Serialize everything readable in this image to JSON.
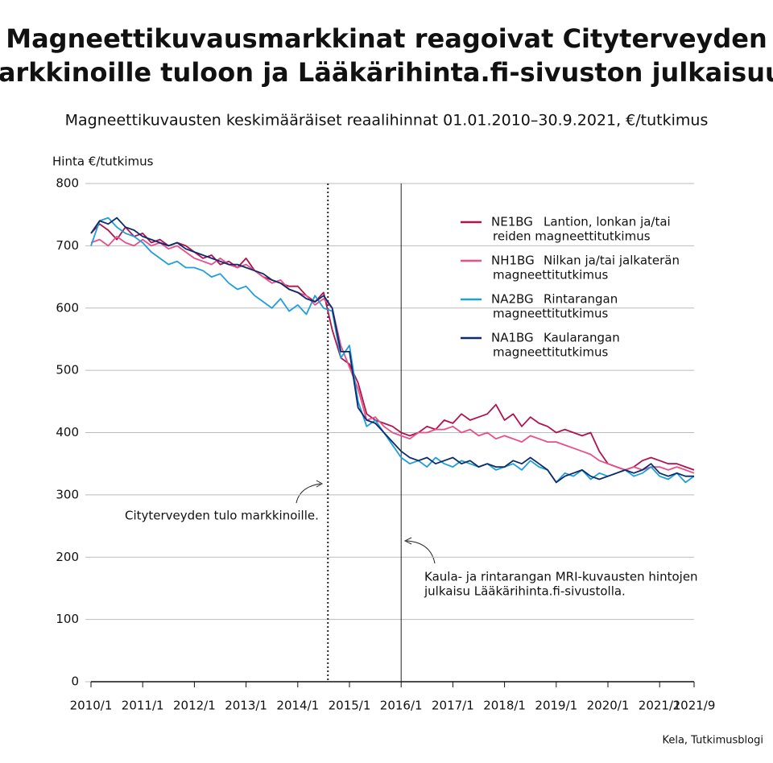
{
  "chart_data": {
    "type": "line",
    "title": [
      "Magneettikuvausmarkkinat reagoivat Cityterveyden",
      "markkinoille tuloon ja Lääkärihinta.fi-sivuston julkaisuun"
    ],
    "subtitle": "Magneettikuvausten keskimääräiset reaalihinnat 01.01.2010–30.9.2021, €/tutkimus",
    "y_label": "Hinta €/tutkimus",
    "source": "Kela, Tutkimusblogi",
    "ylim": [
      0,
      800
    ],
    "yticks": [
      0,
      100,
      200,
      300,
      400,
      500,
      600,
      700,
      800
    ],
    "grid": true,
    "xlim": [
      "2010/1",
      "2021/9"
    ],
    "xticks": [
      "2010/1",
      "2011/1",
      "2012/1",
      "2013/1",
      "2014/1",
      "2015/1",
      "2016/1",
      "2017/1",
      "2018/1",
      "2019/1",
      "2020/1",
      "2021/1",
      "2021/9"
    ],
    "x": [
      "2010/1",
      "2010/3",
      "2010/5",
      "2010/7",
      "2010/9",
      "2010/11",
      "2011/1",
      "2011/3",
      "2011/5",
      "2011/7",
      "2011/9",
      "2011/11",
      "2012/1",
      "2012/3",
      "2012/5",
      "2012/7",
      "2012/9",
      "2012/11",
      "2013/1",
      "2013/3",
      "2013/5",
      "2013/7",
      "2013/9",
      "2013/11",
      "2014/1",
      "2014/3",
      "2014/5",
      "2014/7",
      "2014/9",
      "2014/11",
      "2015/1",
      "2015/3",
      "2015/5",
      "2015/7",
      "2015/9",
      "2015/11",
      "2016/1",
      "2016/3",
      "2016/5",
      "2016/7",
      "2016/9",
      "2016/11",
      "2017/1",
      "2017/3",
      "2017/5",
      "2017/7",
      "2017/9",
      "2017/11",
      "2018/1",
      "2018/3",
      "2018/5",
      "2018/7",
      "2018/9",
      "2018/11",
      "2019/1",
      "2019/3",
      "2019/5",
      "2019/7",
      "2019/9",
      "2019/11",
      "2020/1",
      "2020/3",
      "2020/5",
      "2020/7",
      "2020/9",
      "2020/11",
      "2021/1",
      "2021/3",
      "2021/5",
      "2021/7",
      "2021/9"
    ],
    "series": [
      {
        "name": "NE1BG",
        "label": [
          "Lantion, lonkan ja/tai",
          "reiden magneettitutkimus"
        ],
        "color": "#b0134f",
        "values": [
          720,
          735,
          725,
          710,
          730,
          715,
          720,
          705,
          710,
          700,
          705,
          700,
          690,
          680,
          685,
          670,
          675,
          665,
          680,
          660,
          650,
          645,
          640,
          635,
          635,
          620,
          610,
          625,
          565,
          520,
          510,
          480,
          430,
          420,
          415,
          410,
          400,
          395,
          400,
          410,
          405,
          420,
          415,
          430,
          420,
          425,
          430,
          445,
          420,
          430,
          410,
          425,
          415,
          410,
          400,
          405,
          400,
          395,
          400,
          370,
          350,
          345,
          340,
          345,
          355,
          360,
          355,
          350,
          350,
          345,
          340
        ]
      },
      {
        "name": "NH1BG",
        "label": [
          "Nilkan ja/tai jalkaterän",
          "magneettitutkimus"
        ],
        "color": "#e8508a",
        "values": [
          705,
          710,
          700,
          715,
          705,
          700,
          710,
          700,
          705,
          695,
          700,
          690,
          680,
          675,
          670,
          680,
          670,
          665,
          670,
          660,
          650,
          640,
          645,
          630,
          625,
          620,
          605,
          615,
          600,
          540,
          505,
          470,
          420,
          425,
          410,
          400,
          395,
          390,
          400,
          400,
          405,
          405,
          410,
          400,
          405,
          395,
          400,
          390,
          395,
          390,
          385,
          395,
          390,
          385,
          385,
          380,
          375,
          370,
          365,
          355,
          350,
          345,
          340,
          345,
          340,
          345,
          345,
          340,
          345,
          340,
          335
        ]
      },
      {
        "name": "NA2BG",
        "label": [
          "Rintarangan",
          "magneettitutkimus"
        ],
        "color": "#1e9fd8",
        "values": [
          700,
          740,
          745,
          730,
          720,
          715,
          705,
          690,
          680,
          670,
          675,
          665,
          665,
          660,
          650,
          655,
          640,
          630,
          635,
          620,
          610,
          600,
          615,
          595,
          605,
          590,
          620,
          600,
          595,
          520,
          540,
          450,
          410,
          420,
          400,
          380,
          360,
          350,
          355,
          345,
          360,
          350,
          345,
          355,
          350,
          345,
          350,
          340,
          345,
          350,
          340,
          355,
          345,
          340,
          320,
          335,
          330,
          340,
          325,
          335,
          330,
          335,
          340,
          330,
          335,
          345,
          330,
          325,
          335,
          320,
          330
        ]
      },
      {
        "name": "NA1BG",
        "label": [
          "Kaularangan",
          "magneettitutkimus"
        ],
        "color": "#0d2b6b",
        "values": [
          720,
          740,
          735,
          745,
          730,
          725,
          715,
          710,
          705,
          700,
          705,
          695,
          690,
          685,
          680,
          675,
          670,
          670,
          665,
          660,
          655,
          645,
          640,
          630,
          625,
          615,
          610,
          620,
          600,
          530,
          530,
          440,
          420,
          415,
          400,
          385,
          370,
          360,
          355,
          360,
          350,
          355,
          360,
          350,
          355,
          345,
          350,
          345,
          345,
          355,
          350,
          360,
          350,
          340,
          320,
          330,
          335,
          340,
          330,
          325,
          330,
          335,
          340,
          335,
          340,
          350,
          335,
          330,
          335,
          330,
          330
        ]
      }
    ],
    "events": [
      {
        "x": "2014/8",
        "style": "dotted",
        "label": [
          "Cityterveyden tulo markkinoille."
        ]
      },
      {
        "x": "2016/1",
        "style": "solid",
        "label": [
          "Kaula- ja rintarangan MRI-kuvausten hintojen",
          "julkaisu Lääkärihinta.fi-sivustolla."
        ]
      }
    ]
  }
}
